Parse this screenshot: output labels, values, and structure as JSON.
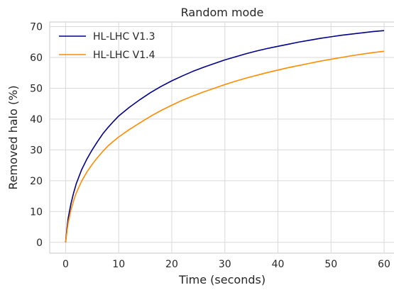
{
  "chart_data": {
    "type": "line",
    "title": "Random mode",
    "xlabel": "Time (seconds)",
    "ylabel": "Removed halo (%)",
    "xlim": [
      -3,
      62
    ],
    "ylim": [
      -3.5,
      71.5
    ],
    "xticks": [
      0,
      10,
      20,
      30,
      40,
      50,
      60
    ],
    "yticks": [
      0,
      10,
      20,
      30,
      40,
      50,
      60,
      70
    ],
    "grid": true,
    "legend": "top-left",
    "series": [
      {
        "name": "HL-LHC V1.3",
        "color": "#00008b",
        "x": [
          0,
          0.25,
          0.5,
          1,
          1.5,
          2,
          3,
          4,
          5,
          6,
          7,
          8,
          9,
          10,
          12,
          14,
          16,
          18,
          20,
          22,
          24,
          26,
          28,
          30,
          32,
          34,
          36,
          38,
          40,
          42,
          44,
          46,
          48,
          50,
          52,
          54,
          56,
          58,
          60
        ],
        "y": [
          0,
          4.5,
          8,
          12.5,
          16,
          19,
          23.5,
          27,
          30,
          32.7,
          35.2,
          37.3,
          39.2,
          41,
          43.8,
          46.3,
          48.6,
          50.6,
          52.4,
          54,
          55.5,
          56.8,
          58,
          59.2,
          60.2,
          61.2,
          62.1,
          62.9,
          63.6,
          64.3,
          65,
          65.6,
          66.2,
          66.7,
          67.2,
          67.6,
          68,
          68.4,
          68.7
        ]
      },
      {
        "name": "HL-LHC V1.4",
        "color": "#ff8c00",
        "x": [
          0,
          0.25,
          0.5,
          1,
          1.5,
          2,
          3,
          4,
          5,
          6,
          7,
          8,
          9,
          10,
          12,
          14,
          16,
          18,
          20,
          22,
          24,
          26,
          28,
          30,
          32,
          34,
          36,
          38,
          40,
          42,
          44,
          46,
          48,
          50,
          52,
          54,
          56,
          58,
          60
        ],
        "y": [
          0,
          3.5,
          6.5,
          10.5,
          13.5,
          16,
          19.8,
          22.8,
          25.3,
          27.5,
          29.5,
          31.3,
          32.8,
          34.2,
          36.6,
          38.8,
          40.9,
          42.8,
          44.5,
          46.1,
          47.5,
          48.8,
          50,
          51.2,
          52.3,
          53.3,
          54.2,
          55.1,
          55.9,
          56.7,
          57.4,
          58.1,
          58.8,
          59.4,
          60,
          60.6,
          61.1,
          61.6,
          62
        ]
      }
    ]
  }
}
